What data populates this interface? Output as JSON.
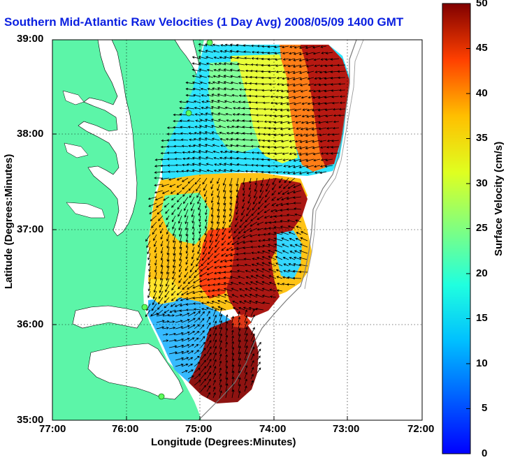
{
  "title": "Southern Mid-Atlantic Raw Velocities (1 Day Avg) 2008/05/09 1400 GMT",
  "map": {
    "x_label": "Longitude (Degrees:Minutes)",
    "y_label": "Latitude (Degrees:Minutes)",
    "x_ticks": [
      "77:00",
      "76:00",
      "75:00",
      "74:00",
      "73:00",
      "72:00"
    ],
    "y_ticks": [
      "39:00",
      "38:00",
      "37:00",
      "36:00",
      "35:00"
    ],
    "lon_range": [
      -77,
      -72
    ],
    "lat_range": [
      35,
      39
    ],
    "grid": "dotted",
    "land_color": "#5cf5a8",
    "water_color": "#ffffff"
  },
  "colorbar": {
    "label": "Surface Velocity (cm/s)",
    "ticks": [
      "50",
      "45",
      "40",
      "35",
      "30",
      "25",
      "20",
      "15",
      "10",
      "5",
      "0"
    ],
    "range": [
      0,
      50
    ],
    "colormap": "jet"
  },
  "stations": [
    "station-1",
    "station-2",
    "station-3",
    "station-4"
  ]
}
